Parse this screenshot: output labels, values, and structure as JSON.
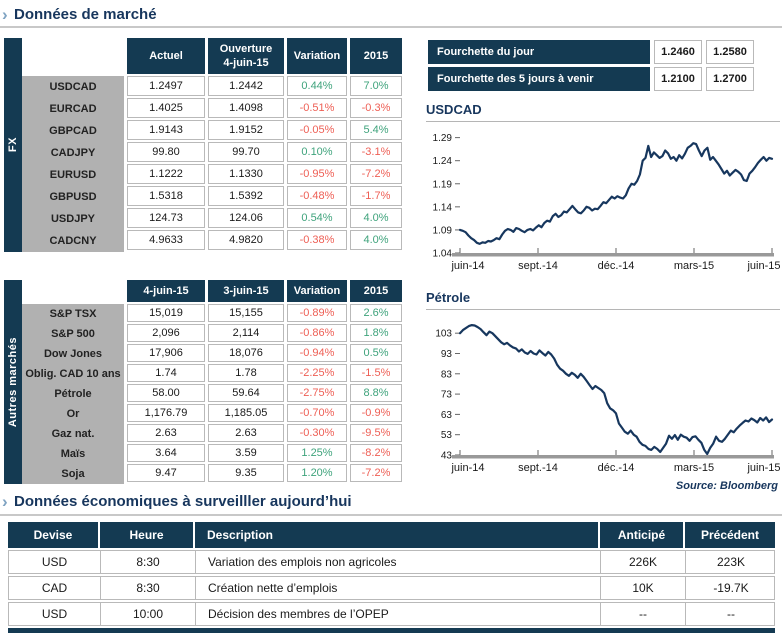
{
  "colors": {
    "navy": "#143A52",
    "title_navy": "#17365D",
    "green": "#3FA37C",
    "red": "#EE5F55",
    "gray_label": "#B1B1B1",
    "border_gray": "#B9B9B9",
    "chart_line": "#17375E"
  },
  "section1": {
    "chevron": "›",
    "title": "Données de marché"
  },
  "section2": {
    "chevron": "›",
    "title": "Données économiques à surveilller aujourd’hui"
  },
  "source_label": "Source: Bloomberg",
  "fx_table": {
    "side_label": "FX",
    "headers": [
      [
        "Actuel"
      ],
      [
        "Ouverture",
        "4-juin-15"
      ],
      [
        "Variation"
      ],
      [
        "2015"
      ]
    ],
    "rows": [
      {
        "label": "USDCAD",
        "c1": "1.2497",
        "c2": "1.2442",
        "var": "0.44%",
        "ytd": "7.0%"
      },
      {
        "label": "EURCAD",
        "c1": "1.4025",
        "c2": "1.4098",
        "var": "-0.51%",
        "ytd": "-0.3%"
      },
      {
        "label": "GBPCAD",
        "c1": "1.9143",
        "c2": "1.9152",
        "var": "-0.05%",
        "ytd": "5.4%"
      },
      {
        "label": "CADJPY",
        "c1": "99.80",
        "c2": "99.70",
        "var": "0.10%",
        "ytd": "-3.1%"
      },
      {
        "label": "EURUSD",
        "c1": "1.1222",
        "c2": "1.1330",
        "var": "-0.95%",
        "ytd": "-7.2%"
      },
      {
        "label": "GBPUSD",
        "c1": "1.5318",
        "c2": "1.5392",
        "var": "-0.48%",
        "ytd": "-1.7%"
      },
      {
        "label": "USDJPY",
        "c1": "124.73",
        "c2": "124.06",
        "var": "0.54%",
        "ytd": "4.0%"
      },
      {
        "label": "CADCNY",
        "c1": "4.9633",
        "c2": "4.9820",
        "var": "-0.38%",
        "ytd": "4.0%"
      }
    ]
  },
  "fourchette": {
    "rows": [
      {
        "label": "Fourchette du jour",
        "low": "1.2460",
        "high": "1.2580"
      },
      {
        "label": "Fourchette des 5 jours à venir",
        "low": "1.2100",
        "high": "1.2700"
      }
    ]
  },
  "autres_table": {
    "side_label": "Autres marchés",
    "headers": [
      [
        "4-juin-15"
      ],
      [
        "3-juin-15"
      ],
      [
        "Variation"
      ],
      [
        "2015"
      ]
    ],
    "rows": [
      {
        "label": "S&P TSX",
        "c1": "15,019",
        "c2": "15,155",
        "var": "-0.89%",
        "ytd": "2.6%"
      },
      {
        "label": "S&P 500",
        "c1": "2,096",
        "c2": "2,114",
        "var": "-0.86%",
        "ytd": "1.8%"
      },
      {
        "label": "Dow Jones",
        "c1": "17,906",
        "c2": "18,076",
        "var": "-0.94%",
        "ytd": "0.5%"
      },
      {
        "label": "Oblig. CAD 10 ans",
        "c1": "1.74",
        "c2": "1.78",
        "var": "-2.25%",
        "ytd": "-1.5%"
      },
      {
        "label": "Pétrole",
        "c1": "58.00",
        "c2": "59.64",
        "var": "-2.75%",
        "ytd": "8.8%"
      },
      {
        "label": "Or",
        "c1": "1,176.79",
        "c2": "1,185.05",
        "var": "-0.70%",
        "ytd": "-0.9%"
      },
      {
        "label": "Gaz nat.",
        "c1": "2.63",
        "c2": "2.63",
        "var": "-0.30%",
        "ytd": "-9.5%"
      },
      {
        "label": "Maïs",
        "c1": "3.64",
        "c2": "3.59",
        "var": "1.25%",
        "ytd": "-8.2%"
      },
      {
        "label": "Soja",
        "c1": "9.47",
        "c2": "9.35",
        "var": "1.20%",
        "ytd": "-7.2%"
      }
    ]
  },
  "econ_table": {
    "headers": [
      "Devise",
      "Heure",
      "Description",
      "Anticipé",
      "Précédent"
    ],
    "rows": [
      {
        "devise": "USD",
        "heure": "8:30",
        "description": "Variation des emplois non agricoles",
        "anticipe": "226K",
        "precedent": "223K"
      },
      {
        "devise": "CAD",
        "heure": "8:30",
        "description": "Création nette d’emplois",
        "anticipe": "10K",
        "precedent": "-19.7K"
      },
      {
        "devise": "USD",
        "heure": "10:00",
        "description": "Décision des membres de l’OPEP",
        "anticipe": "--",
        "precedent": "--"
      }
    ]
  },
  "chart_data": [
    {
      "type": "line",
      "title": "USDCAD",
      "x_ticks": [
        "juin-14",
        "sept.-14",
        "déc.-14",
        "mars-15",
        "juin-15"
      ],
      "y_tick_labels": [
        "1.04",
        "1.09",
        "1.14",
        "1.19",
        "1.24",
        "1.29"
      ],
      "y_ticks": [
        1.04,
        1.09,
        1.14,
        1.19,
        1.24,
        1.29
      ],
      "ylim": [
        1.04,
        1.3
      ],
      "grid": false,
      "legend": "none",
      "line_color": "#17375E",
      "values": [
        1.09,
        1.088,
        1.085,
        1.078,
        1.072,
        1.068,
        1.062,
        1.06,
        1.063,
        1.062,
        1.066,
        1.065,
        1.068,
        1.072,
        1.07,
        1.08,
        1.088,
        1.092,
        1.09,
        1.086,
        1.094,
        1.092,
        1.088,
        1.085,
        1.09,
        1.092,
        1.089,
        1.095,
        1.1,
        1.096,
        1.105,
        1.11,
        1.108,
        1.12,
        1.125,
        1.118,
        1.122,
        1.13,
        1.128,
        1.135,
        1.142,
        1.135,
        1.128,
        1.126,
        1.132,
        1.14,
        1.138,
        1.132,
        1.136,
        1.135,
        1.142,
        1.15,
        1.148,
        1.155,
        1.162,
        1.158,
        1.163,
        1.16,
        1.158,
        1.165,
        1.18,
        1.19,
        1.188,
        1.196,
        1.21,
        1.24,
        1.246,
        1.272,
        1.248,
        1.258,
        1.252,
        1.246,
        1.25,
        1.262,
        1.256,
        1.244,
        1.248,
        1.24,
        1.252,
        1.245,
        1.255,
        1.268,
        1.272,
        1.278,
        1.276,
        1.262,
        1.25,
        1.262,
        1.268,
        1.242,
        1.248,
        1.24,
        1.232,
        1.222,
        1.212,
        1.218,
        1.208,
        1.214,
        1.22,
        1.216,
        1.21,
        1.198,
        1.196,
        1.212,
        1.218,
        1.226,
        1.235,
        1.242,
        1.248,
        1.24,
        1.246,
        1.244
      ]
    },
    {
      "type": "line",
      "title": "Pétrole",
      "x_ticks": [
        "juin-14",
        "sept.-14",
        "déc.-14",
        "mars-15",
        "juin-15"
      ],
      "y_tick_labels": [
        "43",
        "53",
        "63",
        "73",
        "83",
        "93",
        "103"
      ],
      "y_ticks": [
        43,
        53,
        63,
        73,
        83,
        93,
        103
      ],
      "ylim": [
        43,
        109
      ],
      "grid": false,
      "legend": "none",
      "line_color": "#17375E",
      "values": [
        103.0,
        104.5,
        105.5,
        106.5,
        107.0,
        106.8,
        106.0,
        105.0,
        103.5,
        102.0,
        103.8,
        103.0,
        101.5,
        100.0,
        98.5,
        97.5,
        98.2,
        97.0,
        96.0,
        95.5,
        94.0,
        95.0,
        93.5,
        92.8,
        94.2,
        93.0,
        92.5,
        94.5,
        93.2,
        92.0,
        93.8,
        92.5,
        90.5,
        87.5,
        85.5,
        84.5,
        83.0,
        82.0,
        83.5,
        82.5,
        81.0,
        83.0,
        81.5,
        79.5,
        77.5,
        75.5,
        77.0,
        76.0,
        75.0,
        73.5,
        68.5,
        66.0,
        65.0,
        63.5,
        58.5,
        56.5,
        54.5,
        53.5,
        55.0,
        53.0,
        52.0,
        49.5,
        48.0,
        47.5,
        46.0,
        45.5,
        47.0,
        46.0,
        44.5,
        46.5,
        48.5,
        52.5,
        51.0,
        52.8,
        50.5,
        53.0,
        52.0,
        51.5,
        50.0,
        51.8,
        52.2,
        50.5,
        49.0,
        45.5,
        43.5,
        46.5,
        48.5,
        52.0,
        50.0,
        49.5,
        51.0,
        53.0,
        55.0,
        54.2,
        56.0,
        57.5,
        58.8,
        60.0,
        59.5,
        61.0,
        60.2,
        59.0,
        61.2,
        60.0,
        61.5,
        59.2,
        60.5
      ]
    }
  ]
}
